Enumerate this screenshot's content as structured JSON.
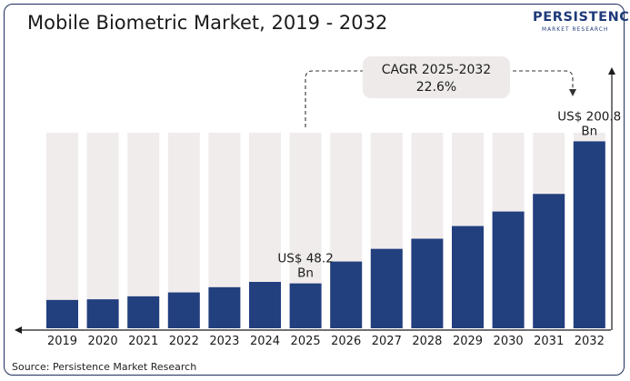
{
  "title": "Mobile Biometric Market, 2019 - 2032",
  "logo": {
    "main": "PERSISTENCE",
    "sub": "MARKET RESEARCH"
  },
  "source": "Source: Persistence Market Research",
  "cagr": {
    "line1": "CAGR 2025-2032",
    "line2": "22.6%"
  },
  "colors": {
    "bar": "#223f7e",
    "track": "#f1ecec",
    "frame": "#1f2d5c",
    "cagr_box": "#efeaea"
  },
  "chart_data": {
    "type": "bar",
    "title": "Mobile Biometric Market, 2019 - 2032",
    "categories": [
      "2019",
      "2020",
      "2021",
      "2022",
      "2023",
      "2024",
      "2025",
      "2026",
      "2027",
      "2028",
      "2029",
      "2030",
      "2031",
      "2032"
    ],
    "values": [
      30.4,
      31.1,
      34.3,
      38.5,
      44.1,
      49.8,
      48.2,
      71.7,
      85.3,
      96.2,
      109.8,
      125.4,
      144.3,
      200.8
    ],
    "ylim": [
      0,
      210
    ],
    "grid": false,
    "legend": "none",
    "data_labels": [
      {
        "category": "2025",
        "line1": "US$ 48.2",
        "line2": "Bn"
      },
      {
        "category": "2032",
        "line1": "US$ 200.8",
        "line2": "Bn"
      }
    ]
  }
}
